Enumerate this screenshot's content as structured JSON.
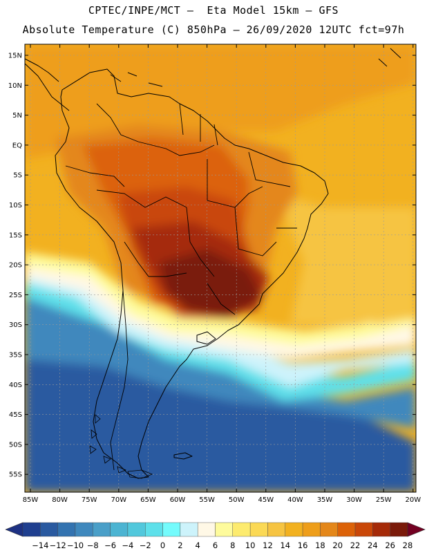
{
  "title": {
    "line1": "CPTEC/INPE/MCT –  Eta Model 15km – GFS",
    "line2": "Absolute Temperature (C) 850hPa – 26/09/2020 12UTC fct=97h"
  },
  "axes": {
    "lat_labels": [
      "15N",
      "10N",
      "5N",
      "EQ",
      "5S",
      "10S",
      "15S",
      "20S",
      "25S",
      "30S",
      "35S",
      "40S",
      "45S",
      "50S",
      "55S"
    ],
    "lon_labels": [
      "85W",
      "80W",
      "75W",
      "70W",
      "65W",
      "60W",
      "55W",
      "50W",
      "45W",
      "40W",
      "35W",
      "30W",
      "25W",
      "20W"
    ]
  },
  "colorbar": {
    "labels": [
      "-14",
      "-12",
      "-10",
      "-8",
      "-6",
      "-4",
      "-2",
      "0",
      "2",
      "4",
      "6",
      "8",
      "10",
      "12",
      "14",
      "16",
      "18",
      "20",
      "22",
      "24",
      "26",
      "28"
    ],
    "colors": [
      "#1f3f8f",
      "#2a5aa0",
      "#3373b0",
      "#3f88bd",
      "#4a9fc8",
      "#4cb4d2",
      "#52c8dc",
      "#5ee0ea",
      "#74fbfc",
      "#cdf3fb",
      "#fff8e6",
      "#fefb9c",
      "#fdeb6e",
      "#fbd955",
      "#f6c442",
      "#f2b120",
      "#ee9e1a",
      "#e4871a",
      "#dc6208",
      "#c94708",
      "#a52a08",
      "#7a1a0a"
    ],
    "under_color": "#1d3183",
    "over_color": "#730022"
  },
  "map_colors": {
    "ocean_deep": "#2a5aa0",
    "ocean_mid": "#3f88bd",
    "cold_light": "#5ee0ea",
    "cyan_pale": "#cdf3fb",
    "cream": "#fff8e6",
    "yellow_pale": "#fefb9c",
    "warm_base": "#f6c442",
    "orange_light": "#f2b120",
    "orange": "#ee9e1a",
    "orange_dark": "#e4871a",
    "red_orange": "#dc6208",
    "red_brown": "#c94708",
    "dark_red": "#a52a08",
    "maroon": "#7a1a0a",
    "coast": "#000000"
  }
}
